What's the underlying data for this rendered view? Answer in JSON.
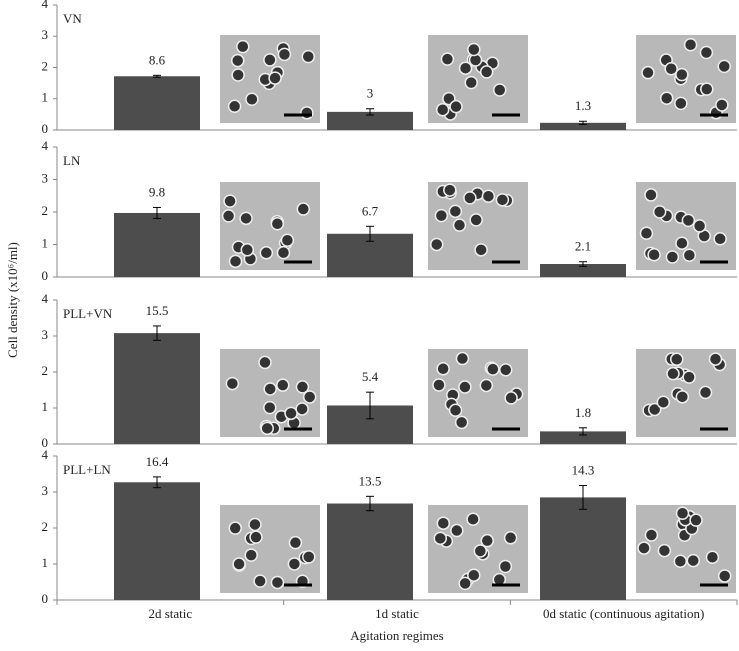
{
  "chart_data": [
    {
      "type": "bar",
      "title": "VN",
      "y_label": "Cell density (x10⁶/ml)",
      "values": [
        1.72,
        0.58,
        0.23
      ],
      "errors": [
        0.03,
        0.1,
        0.05
      ],
      "annotations": [
        8.6,
        3,
        1.3
      ],
      "color": "#4d4d4d",
      "ylim": [
        0,
        4
      ],
      "yticks": [
        0,
        1,
        2,
        3,
        4
      ]
    },
    {
      "type": "bar",
      "title": "LN",
      "values": [
        1.97,
        1.33,
        0.4
      ],
      "errors": [
        0.17,
        0.23,
        0.07
      ],
      "annotations": [
        9.8,
        6.7,
        2.1
      ],
      "color": "#4d4d4d",
      "ylim": [
        0,
        4
      ],
      "yticks": [
        0,
        1,
        2,
        3,
        4
      ]
    },
    {
      "type": "bar",
      "title": "PLL+VN",
      "values": [
        3.08,
        1.07,
        0.35
      ],
      "errors": [
        0.2,
        0.37,
        0.1
      ],
      "annotations": [
        15.5,
        5.4,
        1.8
      ],
      "color": "#4d4d4d",
      "ylim": [
        0,
        4
      ],
      "yticks": [
        0,
        1,
        2,
        3,
        4
      ]
    },
    {
      "type": "bar",
      "title": "PLL+LN",
      "values": [
        3.27,
        2.68,
        2.85
      ],
      "errors": [
        0.15,
        0.2,
        0.33
      ],
      "annotations": [
        16.4,
        13.5,
        14.3
      ],
      "color": "#4d4d4d",
      "ylim": [
        0,
        4
      ],
      "yticks": [
        0,
        1,
        2,
        3,
        4
      ],
      "categories": [
        "2d static",
        "1d static",
        "0d static (continuous agitation)"
      ],
      "x_label": "Agitation regimes"
    }
  ]
}
